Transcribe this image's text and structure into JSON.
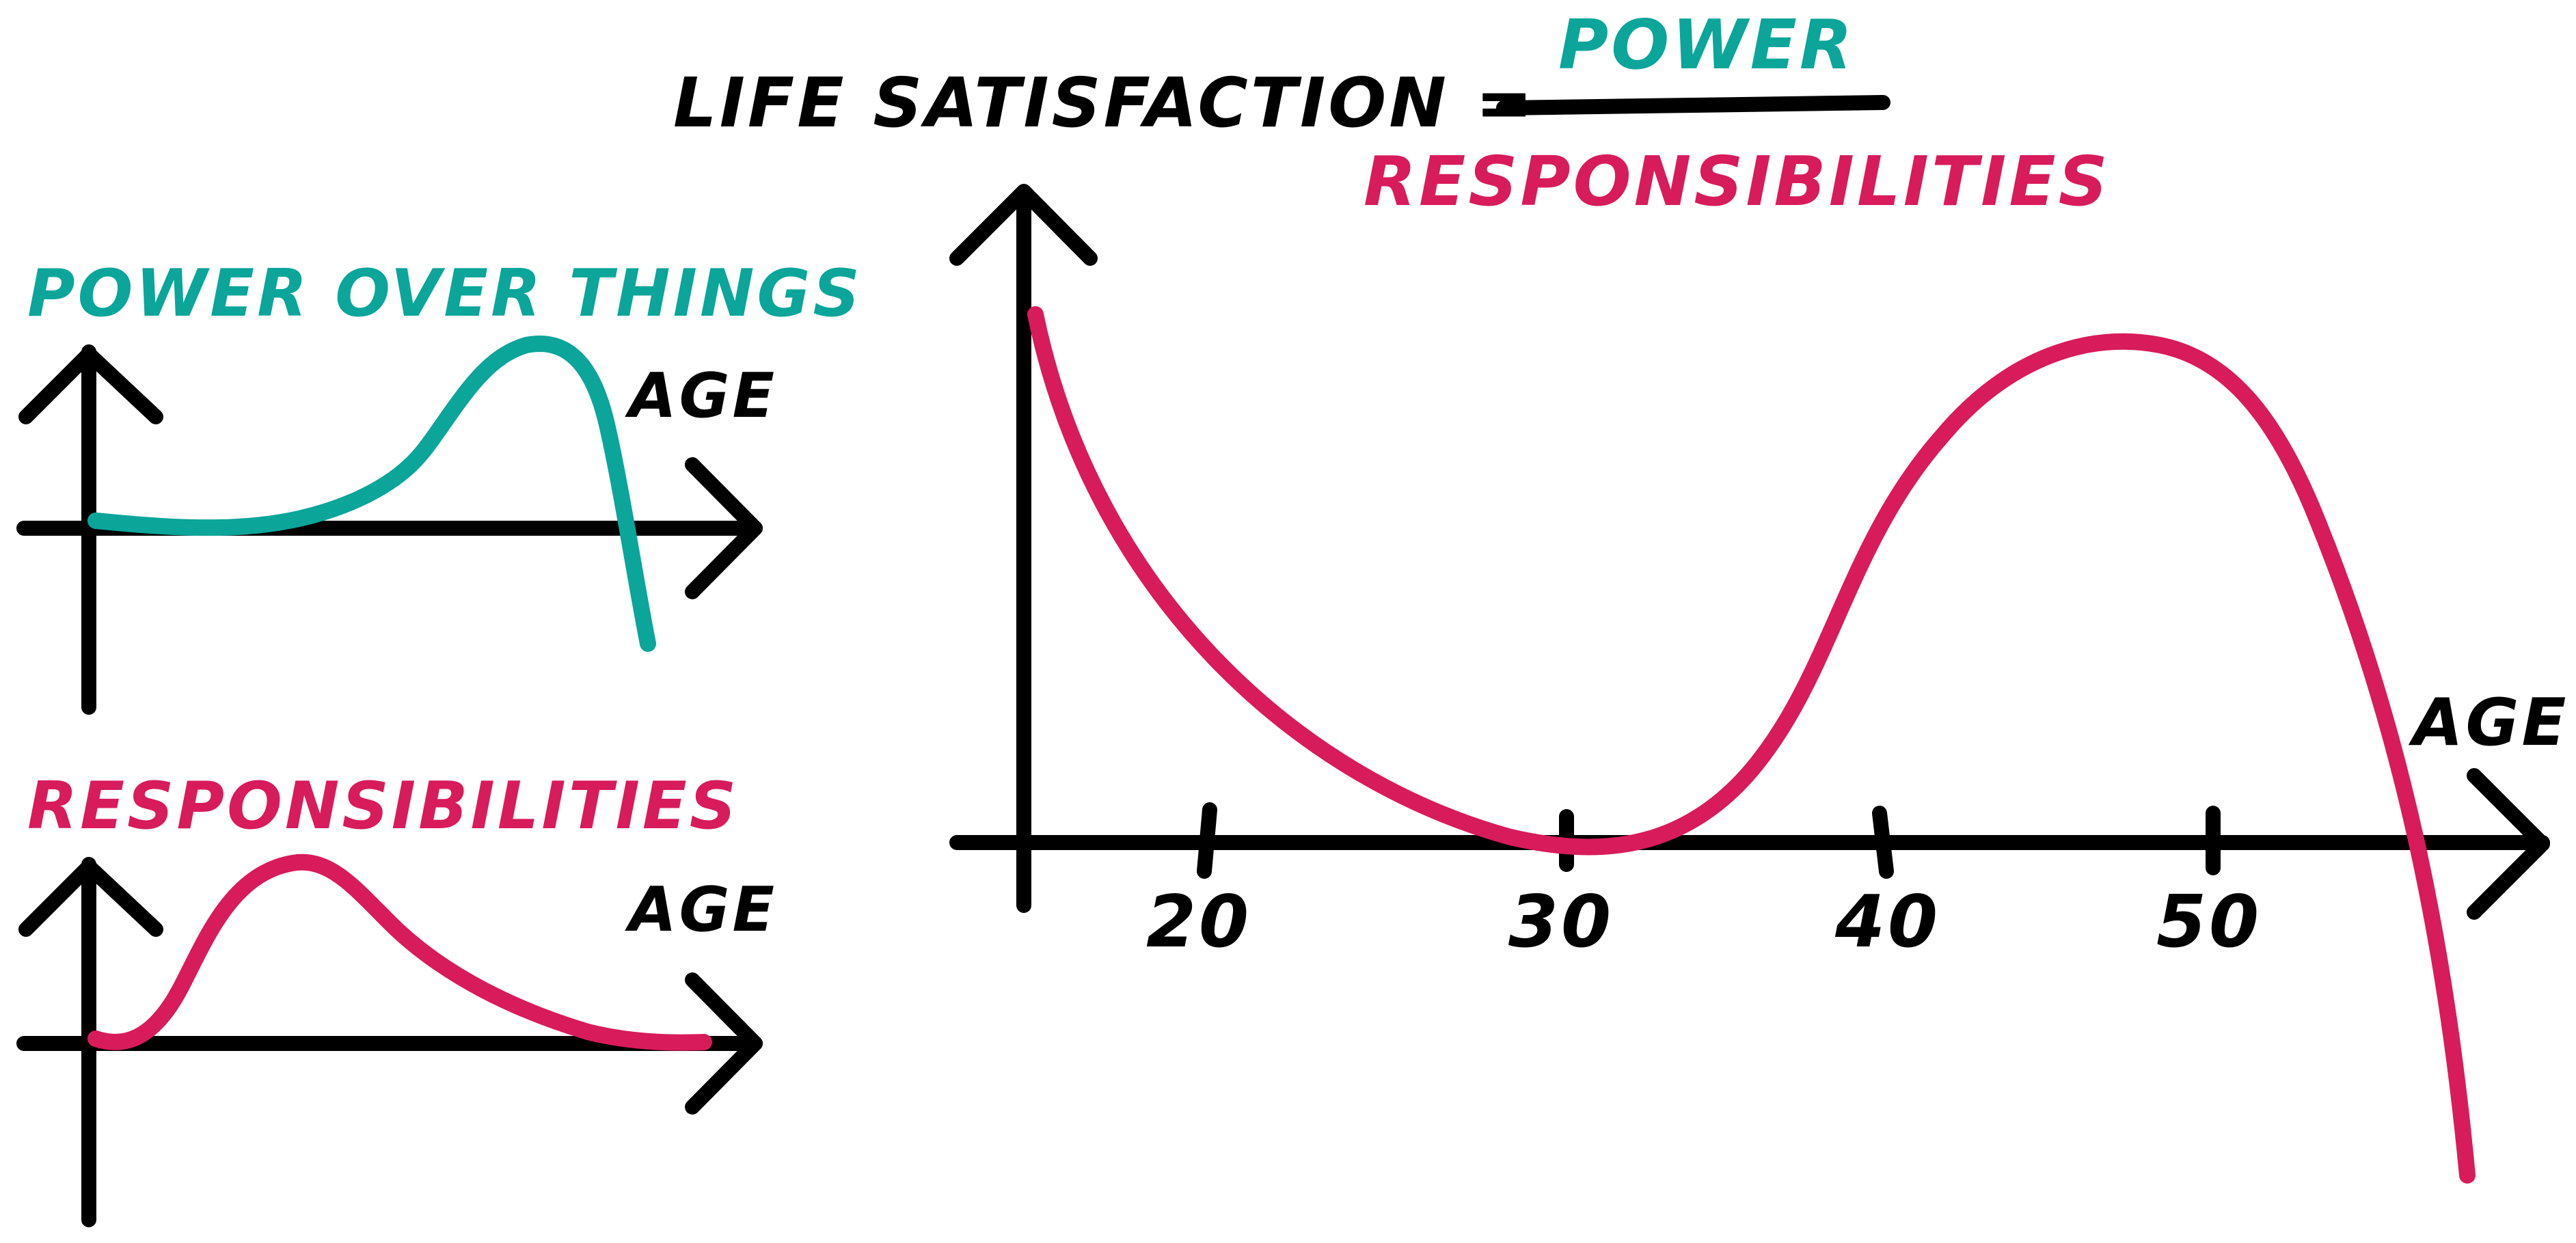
{
  "colors": {
    "power": "#0BA59A",
    "responsibilities": "#D81B5B",
    "ink": "#000000"
  },
  "formula": {
    "lhs": "LIFE SATISFACTION =",
    "numerator": "POWER",
    "denominator": "RESPONSIBILITIES"
  },
  "power_chart": {
    "title": "POWER OVER THINGS",
    "x_label": "AGE"
  },
  "responsibilities_chart": {
    "title": "RESPONSIBILITIES",
    "x_label": "AGE"
  },
  "main_chart": {
    "x_label": "AGE",
    "ticks": [
      "20",
      "30",
      "40",
      "50"
    ]
  }
}
